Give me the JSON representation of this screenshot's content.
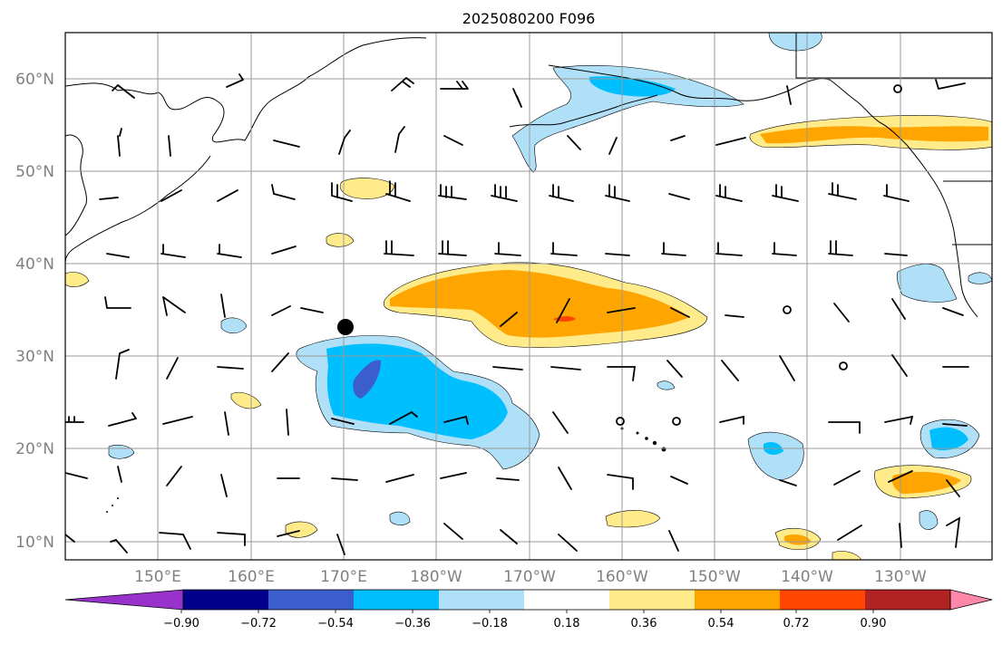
{
  "title": "2025080200 F096",
  "map": {
    "lon_labels": [
      "150°E",
      "160°E",
      "170°E",
      "180°W",
      "170°W",
      "160°W",
      "150°W",
      "140°W",
      "130°W"
    ],
    "lat_labels": [
      "60°N",
      "50°N",
      "40°N",
      "30°N",
      "20°N",
      "10°N"
    ],
    "lon_range_deg_east": [
      140,
      240
    ],
    "lat_range_deg": [
      8,
      65
    ],
    "gridlines": true,
    "marker_lonlat": [
      170,
      33
    ]
  },
  "colorbar": {
    "ticks": [
      "−0.90",
      "−0.72",
      "−0.54",
      "−0.36",
      "−0.18",
      "0.18",
      "0.36",
      "0.54",
      "0.72",
      "0.90"
    ],
    "colors": [
      "#9932cc",
      "#00008b",
      "#3a5fcd",
      "#00bfff",
      "#b0e0f8",
      "#ffffff",
      "#ffeb8a",
      "#ffa500",
      "#ff4500",
      "#b22222",
      "#ff88aa"
    ],
    "extend": "both"
  }
}
